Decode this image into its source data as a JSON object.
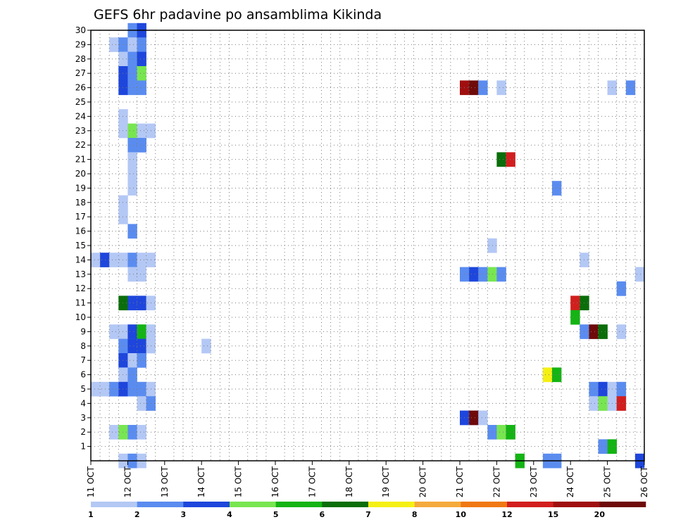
{
  "chart_data": {
    "type": "heatmap",
    "title": "GEFS 6hr padavine po ansamblima Kikinda",
    "xlabel": "",
    "ylabel": "",
    "x_unit": "6-hour step",
    "x_tick_labels": [
      "11 OCT",
      "12 OCT",
      "13 OCT",
      "14 OCT",
      "15 OCT",
      "16 OCT",
      "17 OCT",
      "18 OCT",
      "19 OCT",
      "20 OCT",
      "21 OCT",
      "22 OCT",
      "23 OCT",
      "24 OCT",
      "25 OCT",
      "26 OCT"
    ],
    "y_tick_labels": [
      "1",
      "2",
      "3",
      "4",
      "5",
      "6",
      "7",
      "8",
      "9",
      "10",
      "11",
      "12",
      "13",
      "14",
      "15",
      "16",
      "17",
      "18",
      "19",
      "20",
      "21",
      "22",
      "23",
      "24",
      "25",
      "26",
      "27",
      "28",
      "29",
      "30"
    ],
    "grid": true,
    "colorbar": {
      "labels": [
        "1",
        "2",
        "3",
        "4",
        "5",
        "6",
        "7",
        "8",
        "10",
        "12",
        "15",
        "20"
      ],
      "colors": [
        "#b4c8f5",
        "#5a8cf0",
        "#1e46dc",
        "#78e650",
        "#14b414",
        "#0a6e0a",
        "#f5f014",
        "#f5aa3c",
        "#f07814",
        "#d21e1e",
        "#a00f0f",
        "#6e0a0a"
      ]
    },
    "cells": [
      {
        "member": 30,
        "x": 4,
        "level": 2
      },
      {
        "member": 30,
        "x": 5,
        "level": 3
      },
      {
        "member": 29,
        "x": 2,
        "level": 1
      },
      {
        "member": 29,
        "x": 3,
        "level": 2
      },
      {
        "member": 29,
        "x": 4,
        "level": 1
      },
      {
        "member": 29,
        "x": 5,
        "level": 2
      },
      {
        "member": 28,
        "x": 3,
        "level": 1
      },
      {
        "member": 28,
        "x": 4,
        "level": 2
      },
      {
        "member": 28,
        "x": 5,
        "level": 3
      },
      {
        "member": 27,
        "x": 3,
        "level": 3
      },
      {
        "member": 27,
        "x": 4,
        "level": 2
      },
      {
        "member": 27,
        "x": 5,
        "level": 4
      },
      {
        "member": 26,
        "x": 3,
        "level": 3
      },
      {
        "member": 26,
        "x": 4,
        "level": 2
      },
      {
        "member": 26,
        "x": 5,
        "level": 2
      },
      {
        "member": 26,
        "x": 40,
        "level": 11
      },
      {
        "member": 26,
        "x": 41,
        "level": 12
      },
      {
        "member": 26,
        "x": 42,
        "level": 2
      },
      {
        "member": 26,
        "x": 44,
        "level": 1
      },
      {
        "member": 26,
        "x": 56,
        "level": 1
      },
      {
        "member": 26,
        "x": 58,
        "level": 2
      },
      {
        "member": 24,
        "x": 3,
        "level": 1
      },
      {
        "member": 23,
        "x": 3,
        "level": 1
      },
      {
        "member": 23,
        "x": 4,
        "level": 4
      },
      {
        "member": 23,
        "x": 5,
        "level": 1
      },
      {
        "member": 23,
        "x": 6,
        "level": 1
      },
      {
        "member": 22,
        "x": 4,
        "level": 2
      },
      {
        "member": 22,
        "x": 5,
        "level": 2
      },
      {
        "member": 21,
        "x": 4,
        "level": 1
      },
      {
        "member": 21,
        "x": 44,
        "level": 6
      },
      {
        "member": 21,
        "x": 45,
        "level": 10
      },
      {
        "member": 20,
        "x": 4,
        "level": 1
      },
      {
        "member": 19,
        "x": 4,
        "level": 1
      },
      {
        "member": 19,
        "x": 50,
        "level": 2
      },
      {
        "member": 18,
        "x": 3,
        "level": 1
      },
      {
        "member": 17,
        "x": 3,
        "level": 1
      },
      {
        "member": 16,
        "x": 4,
        "level": 2
      },
      {
        "member": 15,
        "x": 43,
        "level": 1
      },
      {
        "member": 14,
        "x": 0,
        "level": 1
      },
      {
        "member": 14,
        "x": 1,
        "level": 3
      },
      {
        "member": 14,
        "x": 2,
        "level": 1
      },
      {
        "member": 14,
        "x": 3,
        "level": 1
      },
      {
        "member": 14,
        "x": 4,
        "level": 2
      },
      {
        "member": 14,
        "x": 5,
        "level": 1
      },
      {
        "member": 14,
        "x": 6,
        "level": 1
      },
      {
        "member": 14,
        "x": 53,
        "level": 1
      },
      {
        "member": 13,
        "x": 4,
        "level": 1
      },
      {
        "member": 13,
        "x": 5,
        "level": 1
      },
      {
        "member": 13,
        "x": 40,
        "level": 2
      },
      {
        "member": 13,
        "x": 41,
        "level": 3
      },
      {
        "member": 13,
        "x": 42,
        "level": 2
      },
      {
        "member": 13,
        "x": 43,
        "level": 4
      },
      {
        "member": 13,
        "x": 44,
        "level": 2
      },
      {
        "member": 13,
        "x": 59,
        "level": 1
      },
      {
        "member": 12,
        "x": 57,
        "level": 2
      },
      {
        "member": 11,
        "x": 3,
        "level": 6
      },
      {
        "member": 11,
        "x": 4,
        "level": 3
      },
      {
        "member": 11,
        "x": 5,
        "level": 3
      },
      {
        "member": 11,
        "x": 6,
        "level": 1
      },
      {
        "member": 11,
        "x": 52,
        "level": 10
      },
      {
        "member": 11,
        "x": 53,
        "level": 6
      },
      {
        "member": 10,
        "x": 52,
        "level": 5
      },
      {
        "member": 9,
        "x": 2,
        "level": 1
      },
      {
        "member": 9,
        "x": 3,
        "level": 1
      },
      {
        "member": 9,
        "x": 4,
        "level": 3
      },
      {
        "member": 9,
        "x": 5,
        "level": 5
      },
      {
        "member": 9,
        "x": 6,
        "level": 1
      },
      {
        "member": 9,
        "x": 53,
        "level": 2
      },
      {
        "member": 9,
        "x": 54,
        "level": 12
      },
      {
        "member": 9,
        "x": 55,
        "level": 6
      },
      {
        "member": 9,
        "x": 57,
        "level": 1
      },
      {
        "member": 8,
        "x": 3,
        "level": 2
      },
      {
        "member": 8,
        "x": 4,
        "level": 3
      },
      {
        "member": 8,
        "x": 5,
        "level": 3
      },
      {
        "member": 8,
        "x": 6,
        "level": 1
      },
      {
        "member": 8,
        "x": 12,
        "level": 1
      },
      {
        "member": 7,
        "x": 3,
        "level": 3
      },
      {
        "member": 7,
        "x": 4,
        "level": 1
      },
      {
        "member": 7,
        "x": 5,
        "level": 2
      },
      {
        "member": 6,
        "x": 3,
        "level": 1
      },
      {
        "member": 6,
        "x": 4,
        "level": 2
      },
      {
        "member": 6,
        "x": 49,
        "level": 7
      },
      {
        "member": 6,
        "x": 50,
        "level": 5
      },
      {
        "member": 5,
        "x": 0,
        "level": 1
      },
      {
        "member": 5,
        "x": 1,
        "level": 1
      },
      {
        "member": 5,
        "x": 2,
        "level": 2
      },
      {
        "member": 5,
        "x": 3,
        "level": 3
      },
      {
        "member": 5,
        "x": 4,
        "level": 2
      },
      {
        "member": 5,
        "x": 5,
        "level": 2
      },
      {
        "member": 5,
        "x": 6,
        "level": 1
      },
      {
        "member": 5,
        "x": 54,
        "level": 2
      },
      {
        "member": 5,
        "x": 55,
        "level": 3
      },
      {
        "member": 5,
        "x": 56,
        "level": 1
      },
      {
        "member": 5,
        "x": 57,
        "level": 2
      },
      {
        "member": 4,
        "x": 5,
        "level": 1
      },
      {
        "member": 4,
        "x": 6,
        "level": 2
      },
      {
        "member": 4,
        "x": 54,
        "level": 1
      },
      {
        "member": 4,
        "x": 55,
        "level": 4
      },
      {
        "member": 4,
        "x": 56,
        "level": 1
      },
      {
        "member": 4,
        "x": 57,
        "level": 10
      },
      {
        "member": 3,
        "x": 40,
        "level": 3
      },
      {
        "member": 3,
        "x": 41,
        "level": 12
      },
      {
        "member": 3,
        "x": 42,
        "level": 1
      },
      {
        "member": 2,
        "x": 2,
        "level": 1
      },
      {
        "member": 2,
        "x": 3,
        "level": 4
      },
      {
        "member": 2,
        "x": 4,
        "level": 2
      },
      {
        "member": 2,
        "x": 5,
        "level": 1
      },
      {
        "member": 2,
        "x": 43,
        "level": 2
      },
      {
        "member": 2,
        "x": 44,
        "level": 4
      },
      {
        "member": 2,
        "x": 45,
        "level": 5
      },
      {
        "member": 1,
        "x": 55,
        "level": 2
      },
      {
        "member": 1,
        "x": 56,
        "level": 5
      },
      {
        "member": 0,
        "x": 3,
        "level": 1
      },
      {
        "member": 0,
        "x": 4,
        "level": 2
      },
      {
        "member": 0,
        "x": 5,
        "level": 1
      },
      {
        "member": 0,
        "x": 46,
        "level": 5
      },
      {
        "member": 0,
        "x": 49,
        "level": 2
      },
      {
        "member": 0,
        "x": 50,
        "level": 2
      },
      {
        "member": 0,
        "x": 59,
        "level": 3
      }
    ]
  }
}
